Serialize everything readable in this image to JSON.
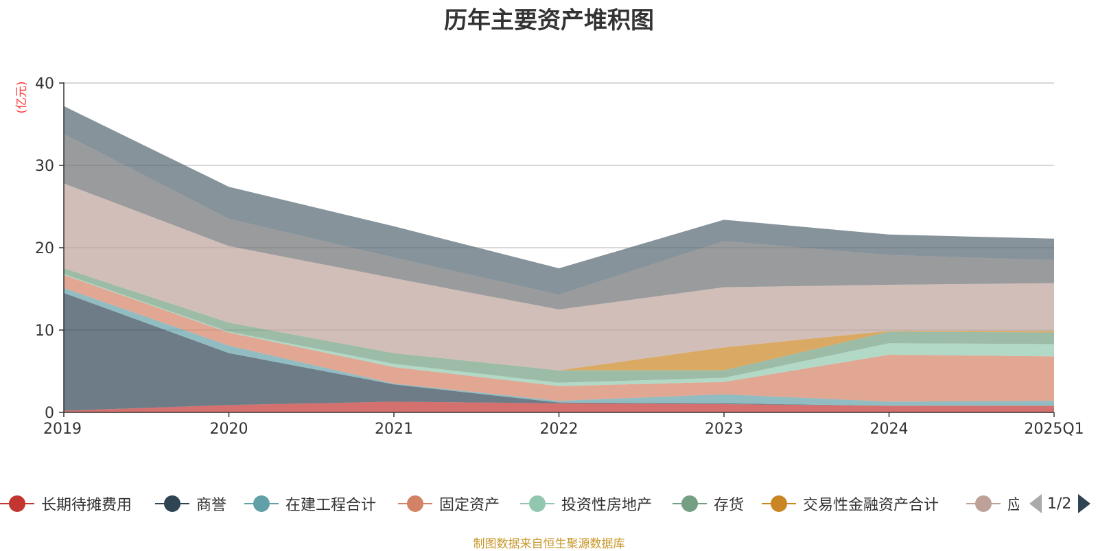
{
  "chart_data": {
    "type": "area",
    "stacked": true,
    "title": "历年主要资产堆积图",
    "unit_label": "(亿元)",
    "categories": [
      "2019",
      "2020",
      "2021",
      "2022",
      "2023",
      "2024",
      "2025Q1"
    ],
    "y_ticks": [
      "0",
      "10",
      "20",
      "30",
      "40"
    ],
    "ylim": [
      0,
      40
    ],
    "grid": true,
    "legend_position": "bottom",
    "legend_page": "1/2",
    "series": [
      {
        "name": "长期待摊费用",
        "color": "#c23531",
        "legend_color": "#c23531",
        "values": [
          0.2,
          0.9,
          1.3,
          1.1,
          1.0,
          0.8,
          0.8
        ]
      },
      {
        "name": "商誉",
        "color": "#2f4554",
        "legend_color": "#2f4554",
        "values": [
          14.3,
          6.3,
          2.1,
          0.1,
          0.1,
          0.0,
          0.0
        ]
      },
      {
        "name": "在建工程合计",
        "color": "#61a0a8",
        "legend_color": "#61a0a8",
        "values": [
          0.6,
          0.9,
          0.1,
          0.2,
          1.1,
          0.5,
          0.6
        ]
      },
      {
        "name": "固定资产",
        "color": "#d48265",
        "legend_color": "#d48265",
        "values": [
          1.6,
          1.6,
          2.0,
          1.8,
          1.5,
          5.7,
          5.4
        ]
      },
      {
        "name": "投资性房地产",
        "color": "#91c7ae",
        "legend_color": "#91c7ae",
        "values": [
          0.1,
          0.1,
          0.4,
          0.4,
          0.5,
          1.4,
          1.5
        ]
      },
      {
        "name": "存货",
        "color": "#749f83",
        "legend_color": "#749f83",
        "values": [
          0.7,
          1.1,
          1.3,
          1.5,
          0.9,
          1.4,
          1.4
        ]
      },
      {
        "name": "交易性金融资产合计",
        "color": "#ca8622",
        "legend_color": "#ca8622",
        "values": [
          0.0,
          0.0,
          0.0,
          0.0,
          2.8,
          0.1,
          0.2
        ]
      },
      {
        "name": "应收账款",
        "color": "#bda29a",
        "legend_color": "#bda29a",
        "values": [
          10.3,
          9.3,
          9.1,
          7.4,
          7.3,
          5.6,
          5.8
        ]
      },
      {
        "name": "",
        "color": "#6e7074",
        "values": [
          6.0,
          3.3,
          2.5,
          1.8,
          5.6,
          3.6,
          2.8
        ]
      },
      {
        "name": "",
        "color": "#546570",
        "values": [
          3.4,
          3.9,
          3.8,
          3.2,
          2.6,
          2.5,
          2.6
        ]
      }
    ]
  },
  "source_note": "制图数据来自恒生聚源数据库"
}
